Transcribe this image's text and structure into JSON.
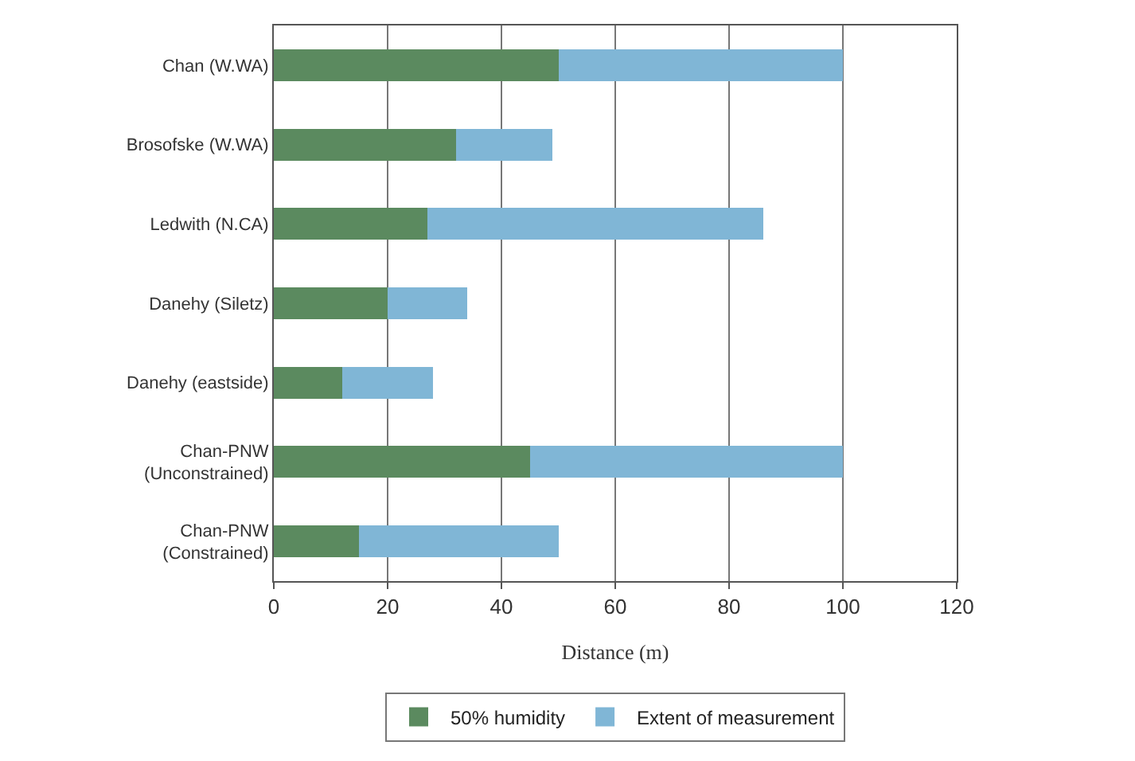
{
  "chart_data": {
    "type": "bar",
    "orientation": "horizontal",
    "stacked": true,
    "categories": [
      "Chan (W.WA)",
      "Brosofske (W.WA)",
      "Ledwith (N.CA)",
      "Danehy (Siletz)",
      "Danehy (eastside)",
      "Chan-PNW (Unconstrained)",
      "Chan-PNW (Constrained)"
    ],
    "series": [
      {
        "name": "50% humidity",
        "color": "#5b8a5f",
        "values": [
          50,
          32,
          27,
          20,
          12,
          45,
          15
        ]
      },
      {
        "name": "Extent of measurement",
        "color": "#80b6d6",
        "values": [
          50,
          17,
          59,
          14,
          16,
          55,
          35
        ]
      }
    ],
    "xlabel": "Distance (m)",
    "xlim": [
      0,
      120
    ],
    "xticks": [
      0,
      20,
      40,
      60,
      80,
      100,
      120
    ],
    "grid": "x",
    "legend": "bottom"
  }
}
